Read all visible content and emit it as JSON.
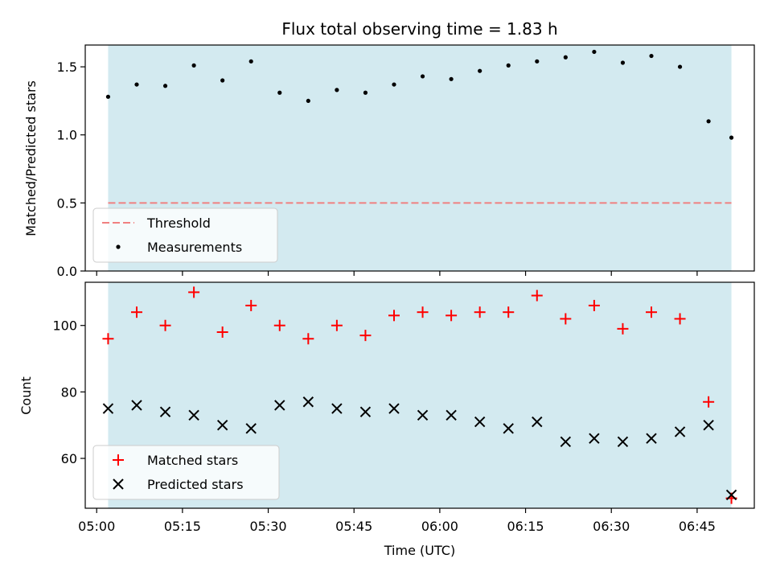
{
  "chart_data": [
    {
      "type": "scatter",
      "title": "Flux total observing time = 1.83 h",
      "xlabel": "",
      "ylabel": "Matched/Predicted stars",
      "xlim": [
        "04:58",
        "06:55"
      ],
      "ylim": [
        0,
        1.66
      ],
      "yticks": [
        "0.0",
        "0.5",
        "1.0",
        "1.5"
      ],
      "shaded_span": [
        "05:02",
        "06:51"
      ],
      "colors": {
        "shade": "#d3eaf0",
        "threshold": "#f08080",
        "points": "#000000"
      },
      "threshold": {
        "name": "Threshold",
        "value": 0.5,
        "x": [
          "05:02",
          "06:51"
        ]
      },
      "series": [
        {
          "name": "Measurements",
          "x": [
            "05:02",
            "05:07",
            "05:12",
            "05:17",
            "05:22",
            "05:27",
            "05:32",
            "05:37",
            "05:42",
            "05:47",
            "05:52",
            "05:57",
            "06:02",
            "06:07",
            "06:12",
            "06:17",
            "06:22",
            "06:27",
            "06:32",
            "06:37",
            "06:42",
            "06:47",
            "06:51"
          ],
          "y": [
            1.28,
            1.37,
            1.36,
            1.51,
            1.4,
            1.54,
            1.31,
            1.25,
            1.33,
            1.31,
            1.37,
            1.43,
            1.41,
            1.47,
            1.51,
            1.54,
            1.57,
            1.61,
            1.53,
            1.58,
            1.5,
            1.1,
            0.98
          ]
        }
      ],
      "legend": {
        "placement": "lower-left",
        "entries": [
          "Threshold",
          "Measurements"
        ]
      }
    },
    {
      "type": "scatter",
      "title": "",
      "xlabel": "Time (UTC)",
      "ylabel": "Count",
      "xlim": [
        "04:58",
        "06:55"
      ],
      "ylim": [
        45,
        113
      ],
      "yticks": [
        "60",
        "80",
        "100"
      ],
      "xticks": [
        "05:00",
        "05:15",
        "05:30",
        "05:45",
        "06:00",
        "06:15",
        "06:30",
        "06:45"
      ],
      "shaded_span": [
        "05:02",
        "06:51"
      ],
      "colors": {
        "shade": "#d3eaf0",
        "matched": "#ff0000",
        "predicted": "#000000"
      },
      "x": [
        "05:02",
        "05:07",
        "05:12",
        "05:17",
        "05:22",
        "05:27",
        "05:32",
        "05:37",
        "05:42",
        "05:47",
        "05:52",
        "05:57",
        "06:02",
        "06:07",
        "06:12",
        "06:17",
        "06:22",
        "06:27",
        "06:32",
        "06:37",
        "06:42",
        "06:47",
        "06:51"
      ],
      "series": [
        {
          "name": "Matched stars",
          "marker": "plus",
          "values": [
            96,
            104,
            100,
            110,
            98,
            106,
            100,
            96,
            100,
            97,
            103,
            104,
            103,
            104,
            104,
            109,
            102,
            106,
            99,
            104,
            102,
            77,
            48
          ]
        },
        {
          "name": "Predicted stars",
          "marker": "x",
          "values": [
            75,
            76,
            74,
            73,
            70,
            69,
            76,
            77,
            75,
            74,
            75,
            73,
            73,
            71,
            69,
            71,
            65,
            66,
            65,
            66,
            68,
            70,
            49
          ]
        }
      ],
      "legend": {
        "placement": "lower-left",
        "entries": [
          "Matched stars",
          "Predicted stars"
        ]
      }
    }
  ]
}
